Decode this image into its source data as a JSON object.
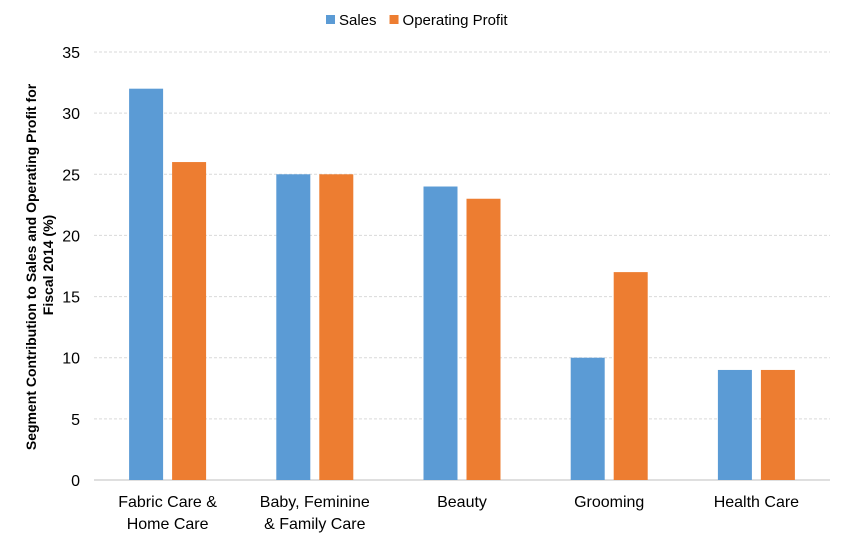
{
  "chart_data": {
    "type": "bar",
    "categories": [
      [
        "Fabric Care &",
        "Home Care"
      ],
      [
        "Baby, Feminine",
        "& Family Care"
      ],
      [
        "Beauty"
      ],
      [
        "Grooming"
      ],
      [
        "Health Care"
      ]
    ],
    "series": [
      {
        "name": "Sales",
        "color": "#5B9BD5",
        "values": [
          32,
          25,
          24,
          10,
          9
        ]
      },
      {
        "name": "Operating Profit",
        "color": "#ED7D31",
        "values": [
          26,
          25,
          23,
          17,
          9
        ]
      }
    ],
    "ylabel": [
      "Segment Contribution to Sales and Operating Profit for",
      "Fiscal 2014 (%)"
    ],
    "xlabel": "",
    "ylim": [
      0,
      35
    ],
    "yticks": [
      0,
      5,
      10,
      15,
      20,
      25,
      30,
      35
    ],
    "grid": true,
    "legend": "top"
  }
}
